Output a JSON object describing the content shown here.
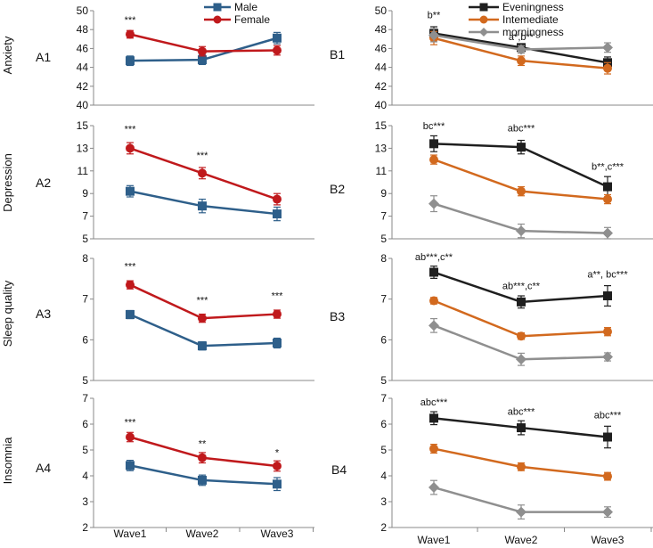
{
  "figure": {
    "x_categories": [
      "Wave1",
      "Wave2",
      "Wave3"
    ],
    "row_labels": [
      "Anxiety",
      "Depression",
      "Sleep quality",
      "Insomnia"
    ]
  },
  "legend_a": [
    {
      "name": "Male",
      "color": "#2e5f8a"
    },
    {
      "name": "Female",
      "color": "#c0191c"
    }
  ],
  "legend_b": [
    {
      "name": "Eveningness",
      "color": "#1f1f1f"
    },
    {
      "name": "Intemediate",
      "color": "#d2691e"
    },
    {
      "name": "morningness",
      "color": "#8f8f8f"
    }
  ],
  "chart_data": [
    {
      "id": "A1",
      "type": "line",
      "ylabel": "Anxiety",
      "ylim": [
        40,
        50
      ],
      "yticks": [
        40,
        42,
        44,
        46,
        48,
        50
      ],
      "categories": [
        "Wave1",
        "Wave2",
        "Wave3"
      ],
      "series": [
        {
          "name": "Male",
          "marker": "square",
          "color": "#2e5f8a",
          "values": [
            44.7,
            44.8,
            47.1
          ],
          "errors": [
            0.5,
            0.5,
            0.6
          ]
        },
        {
          "name": "Female",
          "marker": "circle",
          "color": "#c0191c",
          "values": [
            47.5,
            45.7,
            45.8
          ],
          "errors": [
            0.4,
            0.5,
            0.5
          ]
        }
      ],
      "annotations": [
        {
          "text": "***",
          "category": "Wave1",
          "y": 48.7
        }
      ]
    },
    {
      "id": "B1",
      "type": "line",
      "ylabel": "",
      "ylim": [
        40,
        50
      ],
      "yticks": [
        40,
        42,
        44,
        46,
        48,
        50
      ],
      "categories": [
        "Wave1",
        "Wave2",
        "Wave3"
      ],
      "series": [
        {
          "name": "Eveningness",
          "marker": "square",
          "color": "#1f1f1f",
          "values": [
            47.6,
            46.1,
            44.5
          ],
          "errors": [
            0.7,
            0.3,
            0.6
          ]
        },
        {
          "name": "Intemediate",
          "marker": "circle",
          "color": "#d2691e",
          "values": [
            47.1,
            44.7,
            43.9
          ],
          "errors": [
            0.7,
            0.5,
            0.6
          ]
        },
        {
          "name": "morningness",
          "marker": "diamond",
          "color": "#8f8f8f",
          "values": [
            47.4,
            45.9,
            46.1
          ],
          "errors": [
            0.7,
            0.4,
            0.5
          ]
        }
      ],
      "annotations": [
        {
          "text": "b**",
          "category": "Wave1",
          "y": 49.2
        },
        {
          "text": "a*,b**",
          "category": "Wave2",
          "y": 46.9
        }
      ]
    },
    {
      "id": "A2",
      "type": "line",
      "ylabel": "Depression",
      "ylim": [
        5,
        15
      ],
      "yticks": [
        5,
        7,
        9,
        11,
        13,
        15
      ],
      "categories": [
        "Wave1",
        "Wave2",
        "Wave3"
      ],
      "series": [
        {
          "name": "Male",
          "marker": "square",
          "color": "#2e5f8a",
          "values": [
            9.2,
            7.9,
            7.2
          ],
          "errors": [
            0.5,
            0.6,
            0.6
          ]
        },
        {
          "name": "Female",
          "marker": "circle",
          "color": "#c0191c",
          "values": [
            13.0,
            10.8,
            8.5
          ],
          "errors": [
            0.5,
            0.5,
            0.5
          ]
        }
      ],
      "annotations": [
        {
          "text": "***",
          "category": "Wave1",
          "y": 14.4
        },
        {
          "text": "***",
          "category": "Wave2",
          "y": 12.1
        }
      ]
    },
    {
      "id": "B2",
      "type": "line",
      "ylabel": "",
      "ylim": [
        5,
        15
      ],
      "yticks": [
        5,
        7,
        9,
        11,
        13,
        15
      ],
      "categories": [
        "Wave1",
        "Wave2",
        "Wave3"
      ],
      "series": [
        {
          "name": "Eveningness",
          "marker": "square",
          "color": "#1f1f1f",
          "values": [
            13.4,
            13.1,
            9.6
          ],
          "errors": [
            0.7,
            0.6,
            0.9
          ]
        },
        {
          "name": "Intemediate",
          "marker": "circle",
          "color": "#d2691e",
          "values": [
            12.0,
            9.2,
            8.5
          ],
          "errors": [
            0.4,
            0.4,
            0.4
          ]
        },
        {
          "name": "morningness",
          "marker": "diamond",
          "color": "#8f8f8f",
          "values": [
            8.1,
            5.7,
            5.5
          ],
          "errors": [
            0.7,
            0.6,
            0.5
          ]
        }
      ],
      "annotations": [
        {
          "text": "bc***",
          "category": "Wave1",
          "y": 14.7
        },
        {
          "text": "abc***",
          "category": "Wave2",
          "y": 14.5
        },
        {
          "text": "b**,c***",
          "category": "Wave3",
          "y": 11.1
        }
      ]
    },
    {
      "id": "A3",
      "type": "line",
      "ylabel": "Sleep quality",
      "ylim": [
        5,
        8
      ],
      "yticks": [
        5,
        6,
        7,
        8
      ],
      "categories": [
        "Wave1",
        "Wave2",
        "Wave3"
      ],
      "series": [
        {
          "name": "Male",
          "marker": "square",
          "color": "#2e5f8a",
          "values": [
            6.62,
            5.85,
            5.92
          ],
          "errors": [
            0.1,
            0.1,
            0.12
          ]
        },
        {
          "name": "Female",
          "marker": "circle",
          "color": "#c0191c",
          "values": [
            7.35,
            6.53,
            6.63
          ],
          "errors": [
            0.1,
            0.1,
            0.1
          ]
        }
      ],
      "annotations": [
        {
          "text": "***",
          "category": "Wave1",
          "y": 7.73
        },
        {
          "text": "***",
          "category": "Wave2",
          "y": 6.89
        },
        {
          "text": "***",
          "category": "Wave3",
          "y": 7.0
        }
      ]
    },
    {
      "id": "B3",
      "type": "line",
      "ylabel": "",
      "ylim": [
        5,
        8
      ],
      "yticks": [
        5,
        6,
        7,
        8
      ],
      "categories": [
        "Wave1",
        "Wave2",
        "Wave3"
      ],
      "series": [
        {
          "name": "Eveningness",
          "marker": "square",
          "color": "#1f1f1f",
          "values": [
            7.66,
            6.93,
            7.08
          ],
          "errors": [
            0.15,
            0.15,
            0.25
          ]
        },
        {
          "name": "Intemediate",
          "marker": "circle",
          "color": "#d2691e",
          "values": [
            6.96,
            6.09,
            6.2
          ],
          "errors": [
            0.08,
            0.08,
            0.1
          ]
        },
        {
          "name": "morningness",
          "marker": "diamond",
          "color": "#8f8f8f",
          "values": [
            6.35,
            5.52,
            5.58
          ],
          "errors": [
            0.17,
            0.15,
            0.1
          ]
        }
      ],
      "annotations": [
        {
          "text": "ab***,c**",
          "category": "Wave1",
          "y": 7.96
        },
        {
          "text": "ab***,c**",
          "category": "Wave2",
          "y": 7.24
        },
        {
          "text": "a**, bc***",
          "category": "Wave3",
          "y": 7.53
        }
      ]
    },
    {
      "id": "A4",
      "type": "line",
      "ylabel": "Insomnia",
      "ylim": [
        2,
        7
      ],
      "yticks": [
        2,
        3,
        4,
        5,
        6,
        7
      ],
      "categories": [
        "Wave1",
        "Wave2",
        "Wave3"
      ],
      "series": [
        {
          "name": "Male",
          "marker": "square",
          "color": "#2e5f8a",
          "values": [
            4.4,
            3.83,
            3.68
          ],
          "errors": [
            0.2,
            0.2,
            0.25
          ]
        },
        {
          "name": "Female",
          "marker": "circle",
          "color": "#c0191c",
          "values": [
            5.5,
            4.7,
            4.38
          ],
          "errors": [
            0.18,
            0.2,
            0.2
          ]
        }
      ],
      "annotations": [
        {
          "text": "***",
          "category": "Wave1",
          "y": 5.95
        },
        {
          "text": "**",
          "category": "Wave2",
          "y": 5.12
        },
        {
          "text": "*",
          "category": "Wave3",
          "y": 4.78
        }
      ]
    },
    {
      "id": "B4",
      "type": "line",
      "ylabel": "",
      "ylim": [
        2,
        7
      ],
      "yticks": [
        2,
        3,
        4,
        5,
        6,
        7
      ],
      "categories": [
        "Wave1",
        "Wave2",
        "Wave3"
      ],
      "series": [
        {
          "name": "Eveningness",
          "marker": "square",
          "color": "#1f1f1f",
          "values": [
            6.23,
            5.86,
            5.5
          ],
          "errors": [
            0.25,
            0.27,
            0.42
          ]
        },
        {
          "name": "Intemediate",
          "marker": "circle",
          "color": "#d2691e",
          "values": [
            5.05,
            4.35,
            3.98
          ],
          "errors": [
            0.17,
            0.15,
            0.15
          ]
        },
        {
          "name": "morningness",
          "marker": "diamond",
          "color": "#8f8f8f",
          "values": [
            3.55,
            2.6,
            2.6
          ],
          "errors": [
            0.27,
            0.27,
            0.2
          ]
        }
      ],
      "annotations": [
        {
          "text": "abc***",
          "category": "Wave1",
          "y": 6.72
        },
        {
          "text": "abc***",
          "category": "Wave2",
          "y": 6.37
        },
        {
          "text": "abc***",
          "category": "Wave3",
          "y": 6.22
        }
      ]
    }
  ]
}
